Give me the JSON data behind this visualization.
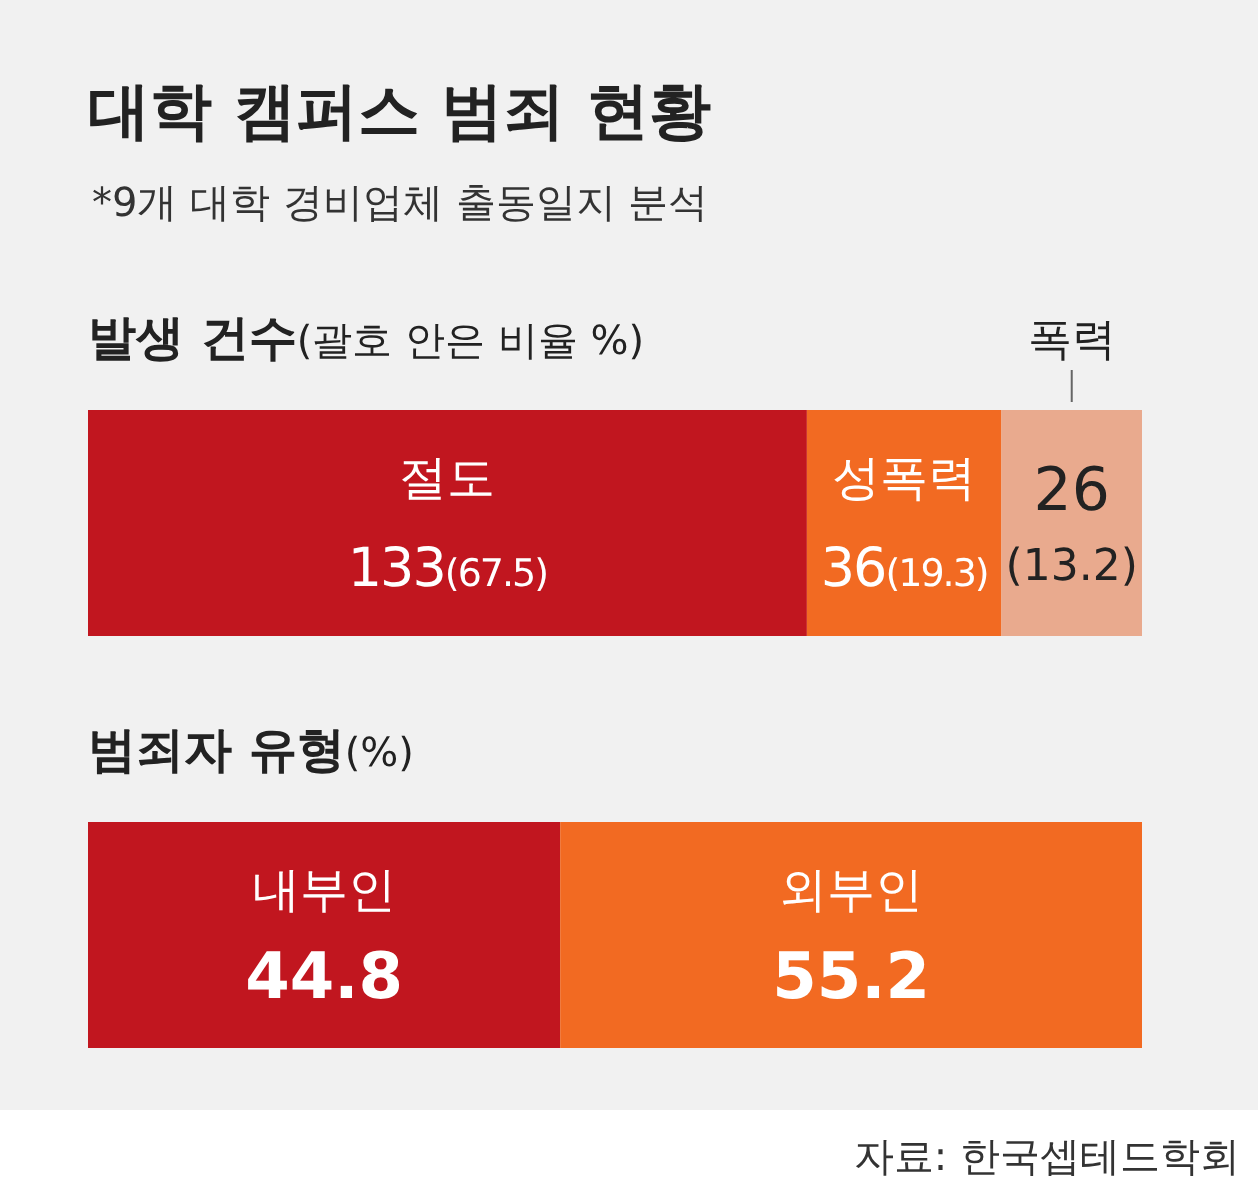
{
  "chart_data": [
    {
      "type": "bar",
      "orientation": "horizontal",
      "stacked": true,
      "title": "대학 캠퍼스 범죄 현황",
      "subtitle": "*9개 대학 경비업체 출동일지 분석",
      "annotations": [
        "발생 건수(괄호 안은 비율 %)"
      ],
      "categories": [
        null
      ],
      "series": [
        {
          "name": "절도",
          "color": "#c1161f",
          "values": [
            133
          ],
          "value_labels": [
            "133(67.5)"
          ]
        },
        {
          "name": "성폭력",
          "color": "#f26a22",
          "values": [
            36
          ],
          "value_labels": [
            "36(19.3)"
          ]
        },
        {
          "name": "폭력",
          "color": "#e9aa8e",
          "values": [
            26
          ],
          "value_labels": [
            "26(13.2)"
          ]
        }
      ]
    },
    {
      "type": "bar",
      "orientation": "horizontal",
      "stacked": true,
      "title": "범죄자 유형(%)",
      "annotations": [
        "자료: 한국셉테드학회"
      ],
      "categories": [
        null
      ],
      "data_labels": true,
      "series": [
        {
          "name": "내부인",
          "color": "#c1161f",
          "values": [
            44.8
          ]
        },
        {
          "name": "외부인",
          "color": "#f26a22",
          "values": [
            55.2
          ]
        }
      ]
    }
  ]
}
